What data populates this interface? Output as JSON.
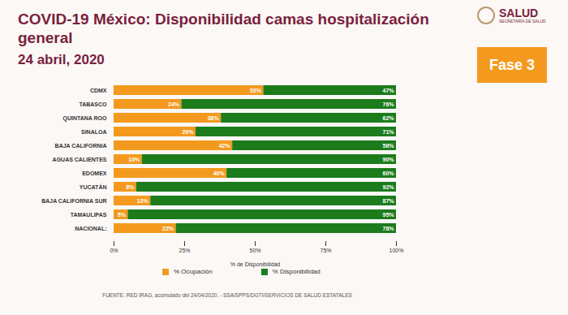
{
  "chart_data": {
    "type": "bar",
    "orientation": "horizontal",
    "stacked": true,
    "data_labels": true,
    "grid": false,
    "title": "COVID-19 México: Disponibilidad camas hospitalización general",
    "subtitle": "24 abril, 2020",
    "annotations": [
      "Fase 3",
      "SALUD",
      "SECRETARÍA DE SALUD"
    ],
    "source": "FUENTE: RED IRAG, acumulado del 24/04/2020. - SSA/SPPS/DGTI/SERVICIOS DE SALUD ESTATALES",
    "x_label": "% de Disponibilidad",
    "categories": [
      "CDMX",
      "TABASCO",
      "QUINTANA ROO",
      "SINALOA",
      "BAJA CALIFORNIA",
      "AGUAS CALIENTES",
      "EDOMEX",
      "YUCATÁN",
      "BAJA CALIFORNIA SUR",
      "TAMAULIPAS",
      "NACIONAL:"
    ],
    "series": [
      {
        "name": "% Ocupación",
        "color": "#f39a1e",
        "values": [
          53,
          24,
          38,
          29,
          42,
          10,
          40,
          8,
          13,
          5,
          22
        ],
        "value_labels": [
          "53%",
          "24%",
          "38%",
          "29%",
          "42%",
          "10%",
          "40%",
          "8%",
          "13%",
          "5%",
          "22%"
        ]
      },
      {
        "name": "% Disponibilidad",
        "color": "#1c7c1c",
        "values": [
          47,
          76,
          62,
          71,
          58,
          90,
          60,
          92,
          87,
          95,
          78
        ],
        "value_labels": [
          "47%",
          "76%",
          "62%",
          "71%",
          "58%",
          "90%",
          "60%",
          "92%",
          "87%",
          "95%",
          "78%"
        ]
      }
    ],
    "legend": "bottom",
    "xlim": [
      0,
      100
    ],
    "xticks": [
      {
        "value": 0,
        "label": "0%"
      },
      {
        "value": 25,
        "label": "25%"
      },
      {
        "value": 50,
        "label": "50%"
      },
      {
        "value": 75,
        "label": "75%"
      },
      {
        "value": 100,
        "label": "100%"
      }
    ]
  }
}
